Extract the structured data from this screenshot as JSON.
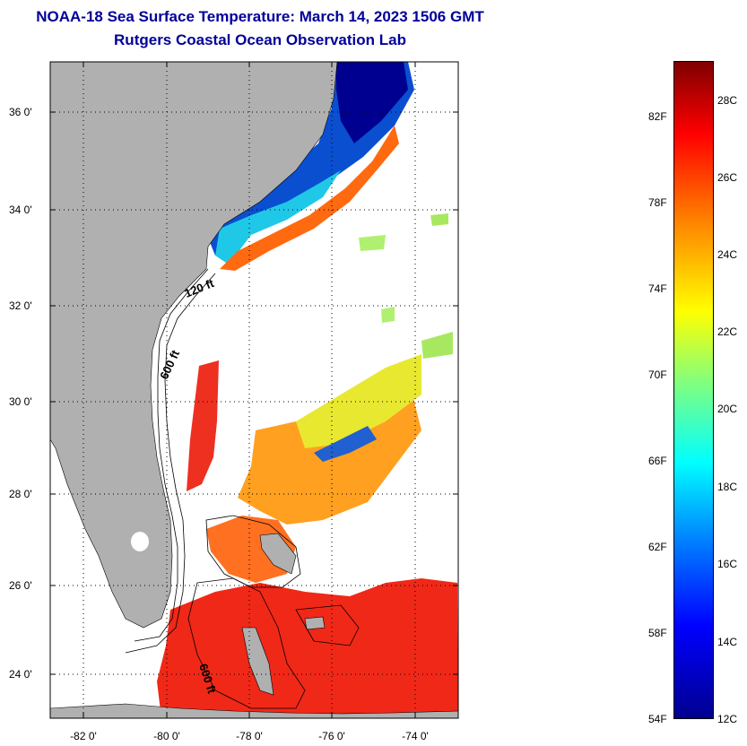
{
  "title": {
    "line1": "NOAA-18 Sea Surface Temperature:  March 14, 2023 1506 GMT",
    "line2": "Rutgers Coastal Ocean Observation Lab"
  },
  "map": {
    "lon_range": [
      -83,
      -73
    ],
    "lat_range": [
      23,
      37
    ],
    "lat_ticks": [
      "36 0'",
      "34 0'",
      "32 0'",
      "30 0'",
      "28 0'",
      "26 0'",
      "24 0'"
    ],
    "lon_ticks": [
      "-82 0'",
      "-80 0'",
      "-78 0'",
      "-76 0'",
      "-74 0'"
    ],
    "contour_labels": [
      "120 ft",
      "600 ft",
      "600 ft"
    ],
    "land_color": "#b0b0b0"
  },
  "colorbar": {
    "fahrenheit": [
      "82F",
      "78F",
      "74F",
      "70F",
      "66F",
      "62F",
      "58F",
      "54F"
    ],
    "celsius": [
      "28C",
      "26C",
      "24C",
      "22C",
      "20C",
      "18C",
      "16C",
      "14C",
      "12C"
    ],
    "min_c": 12,
    "max_c": 29
  }
}
